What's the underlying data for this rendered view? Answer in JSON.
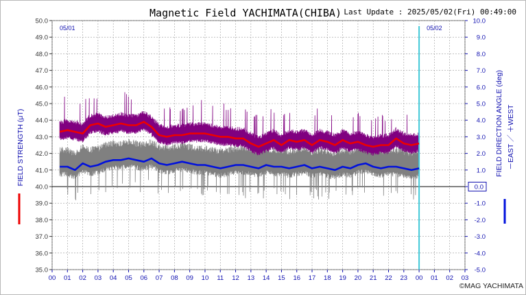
{
  "header": {
    "title": "Magnetic Field YACHIMATA(CHIBA)",
    "last_update": "Last Update : 2025/05/02(Fri) 00:49:00"
  },
  "footer": {
    "copyright": "©MAG YACHIMATA"
  },
  "colors": {
    "strength": "#ee0000",
    "strength_raw": "#800080",
    "angle": "#0010dd",
    "angle_raw": "#808080",
    "day_marker": "#40c8d8",
    "grid": "#9a9a9a"
  },
  "chart_data": {
    "type": "line",
    "title": "Magnetic Field YACHIMATA(CHIBA)",
    "ylabel_left": "FIELD STRENGTH (μT)",
    "ylabel_right": "FIELD DIRECTION ANGLE (deg)",
    "ylabel_right_sub": "－EAST ／ ＋WEST",
    "ylim_left": [
      35.0,
      50.0
    ],
    "ylim_right": [
      -5.0,
      10.0
    ],
    "xlim_hours": [
      0,
      27
    ],
    "y_ticks_left": [
      "35.0",
      "36.0",
      "37.0",
      "38.0",
      "39.0",
      "40.0",
      "41.0",
      "42.0",
      "43.0",
      "44.0",
      "45.0",
      "46.0",
      "47.0",
      "48.0",
      "49.0",
      "50.0"
    ],
    "y_ticks_right": [
      "-5.0",
      "-4.0",
      "-3.0",
      "-2.0",
      "-1.0",
      "0.0",
      "1.0",
      "2.0",
      "3.0",
      "4.0",
      "5.0",
      "6.0",
      "7.0",
      "8.0",
      "9.0",
      "10.0"
    ],
    "x_ticks": [
      "00",
      "01",
      "02",
      "03",
      "04",
      "05",
      "06",
      "07",
      "08",
      "09",
      "10",
      "11",
      "12",
      "13",
      "14",
      "15",
      "16",
      "17",
      "18",
      "19",
      "20",
      "21",
      "22",
      "23",
      "00",
      "01",
      "02",
      "03"
    ],
    "day_labels": [
      {
        "label": "05/01",
        "hour": 0
      },
      {
        "label": "05/02",
        "hour": 24
      }
    ],
    "zero_reference_label": "0.0",
    "grid": true,
    "series": [
      {
        "name": "FIELD STRENGTH",
        "axis": "left",
        "x": [
          0.5,
          1,
          1.5,
          2,
          2.5,
          3,
          3.5,
          4,
          4.5,
          5,
          5.5,
          6,
          6.5,
          7,
          7.5,
          8,
          8.5,
          9,
          9.5,
          10,
          10.5,
          11,
          11.5,
          12,
          12.5,
          13,
          13.5,
          14,
          14.5,
          15,
          15.5,
          16,
          16.5,
          17,
          17.5,
          18,
          18.5,
          19,
          19.5,
          20,
          20.5,
          21,
          21.5,
          22,
          22.5,
          23,
          23.5,
          24
        ],
        "values": [
          43.3,
          43.4,
          43.3,
          43.2,
          43.7,
          43.8,
          43.6,
          43.7,
          43.8,
          43.7,
          43.7,
          43.9,
          43.6,
          43.1,
          43.0,
          43.1,
          43.1,
          43.2,
          43.2,
          43.2,
          43.1,
          43.0,
          43.0,
          42.9,
          42.9,
          42.6,
          42.4,
          42.6,
          42.8,
          42.5,
          42.8,
          42.7,
          42.8,
          42.5,
          42.8,
          42.7,
          42.5,
          42.8,
          42.6,
          42.7,
          42.5,
          42.4,
          42.5,
          42.5,
          42.9,
          42.6,
          42.5,
          42.6
        ]
      },
      {
        "name": "FIELD DIRECTION ANGLE",
        "axis": "right",
        "x": [
          0.5,
          1,
          1.5,
          2,
          2.5,
          3,
          3.5,
          4,
          4.5,
          5,
          5.5,
          6,
          6.5,
          7,
          7.5,
          8,
          8.5,
          9,
          9.5,
          10,
          10.5,
          11,
          11.5,
          12,
          12.5,
          13,
          13.5,
          14,
          14.5,
          15,
          15.5,
          16,
          16.5,
          17,
          17.5,
          18,
          18.5,
          19,
          19.5,
          20,
          20.5,
          21,
          21.5,
          22,
          22.5,
          23,
          23.5,
          24
        ],
        "values": [
          1.2,
          1.2,
          1.0,
          1.4,
          1.2,
          1.3,
          1.5,
          1.6,
          1.6,
          1.7,
          1.6,
          1.5,
          1.7,
          1.4,
          1.3,
          1.4,
          1.5,
          1.4,
          1.3,
          1.3,
          1.2,
          1.1,
          1.2,
          1.3,
          1.3,
          1.2,
          1.1,
          1.3,
          1.2,
          1.2,
          1.1,
          1.2,
          1.3,
          1.1,
          1.2,
          1.1,
          1.0,
          1.2,
          1.1,
          1.3,
          1.4,
          1.2,
          1.1,
          1.2,
          1.2,
          1.1,
          1.0,
          1.1
        ]
      }
    ]
  }
}
